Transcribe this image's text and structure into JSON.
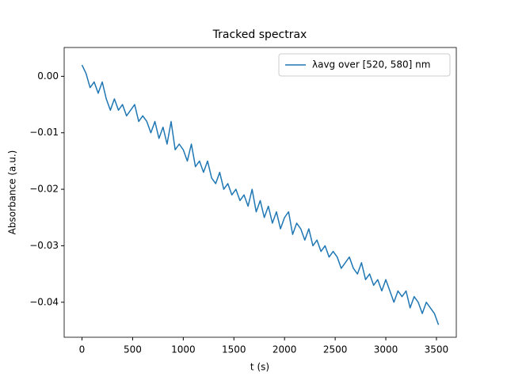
{
  "chart_data": {
    "type": "line",
    "title": "Tracked spectrax",
    "xlabel": "t (s)",
    "ylabel": "Absorbance (a.u.)",
    "x": [
      0,
      40,
      80,
      120,
      160,
      200,
      240,
      280,
      320,
      360,
      400,
      440,
      480,
      520,
      560,
      600,
      640,
      680,
      720,
      760,
      800,
      840,
      880,
      920,
      960,
      1000,
      1040,
      1080,
      1120,
      1160,
      1200,
      1240,
      1280,
      1320,
      1360,
      1400,
      1440,
      1480,
      1520,
      1560,
      1600,
      1640,
      1680,
      1720,
      1760,
      1800,
      1840,
      1880,
      1920,
      1960,
      2000,
      2040,
      2080,
      2120,
      2160,
      2200,
      2240,
      2280,
      2320,
      2360,
      2400,
      2440,
      2480,
      2520,
      2560,
      2600,
      2640,
      2680,
      2720,
      2760,
      2800,
      2840,
      2880,
      2920,
      2960,
      3000,
      3040,
      3080,
      3120,
      3160,
      3200,
      3240,
      3280,
      3320,
      3360,
      3400,
      3440,
      3480,
      3520
    ],
    "series": [
      {
        "name": "λavg over [520, 580] nm",
        "color": "#1f77b4",
        "values": [
          0.002,
          0.0005,
          -0.002,
          -0.001,
          -0.003,
          -0.001,
          -0.004,
          -0.006,
          -0.004,
          -0.006,
          -0.005,
          -0.007,
          -0.006,
          -0.005,
          -0.008,
          -0.007,
          -0.008,
          -0.01,
          -0.008,
          -0.011,
          -0.009,
          -0.012,
          -0.008,
          -0.013,
          -0.012,
          -0.013,
          -0.015,
          -0.012,
          -0.016,
          -0.015,
          -0.017,
          -0.015,
          -0.018,
          -0.019,
          -0.017,
          -0.02,
          -0.019,
          -0.021,
          -0.02,
          -0.022,
          -0.021,
          -0.023,
          -0.02,
          -0.024,
          -0.022,
          -0.025,
          -0.023,
          -0.026,
          -0.024,
          -0.027,
          -0.025,
          -0.024,
          -0.028,
          -0.026,
          -0.027,
          -0.029,
          -0.027,
          -0.03,
          -0.029,
          -0.031,
          -0.03,
          -0.032,
          -0.031,
          -0.032,
          -0.034,
          -0.033,
          -0.032,
          -0.034,
          -0.035,
          -0.033,
          -0.036,
          -0.035,
          -0.037,
          -0.036,
          -0.038,
          -0.036,
          -0.038,
          -0.04,
          -0.038,
          -0.039,
          -0.038,
          -0.041,
          -0.039,
          -0.04,
          -0.042,
          -0.04,
          -0.041,
          -0.042,
          -0.044
        ]
      }
    ],
    "xlim": [
      -176,
      3696
    ],
    "ylim": [
      -0.0462,
      0.0051
    ],
    "xticks": [
      0,
      500,
      1000,
      1500,
      2000,
      2500,
      3000,
      3500
    ],
    "yticks": [
      {
        "value": -0.04,
        "label": "−0.04"
      },
      {
        "value": -0.03,
        "label": "−0.03"
      },
      {
        "value": -0.02,
        "label": "−0.02"
      },
      {
        "value": -0.01,
        "label": "−0.01"
      },
      {
        "value": 0,
        "label": "0.00"
      }
    ],
    "legend": "upper right"
  }
}
